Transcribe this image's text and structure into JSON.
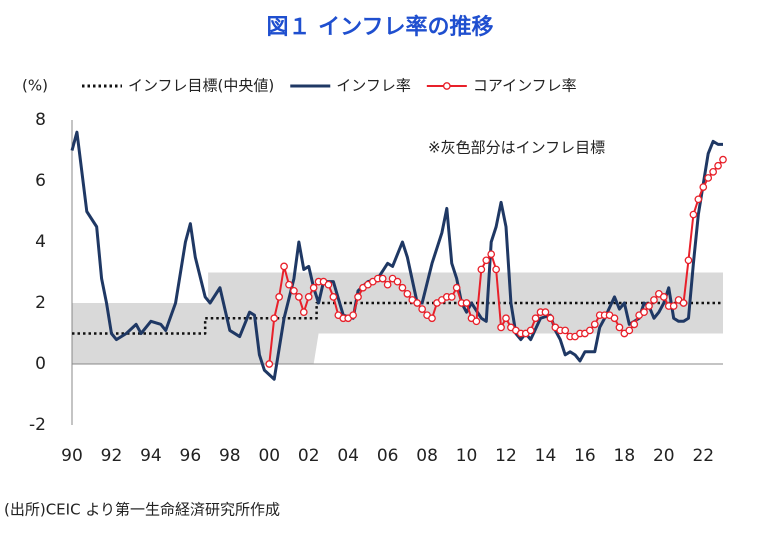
{
  "chart_data": {
    "type": "line",
    "title": "図１ インフレ率の推移",
    "unit_label": "(%)",
    "annotation": "※灰色部分はインフレ目標",
    "source": "(出所)CEIC より第一生命経済研究所作成",
    "xlim": [
      1990,
      2023
    ],
    "ylim": [
      -2,
      8
    ],
    "yticks": [
      -2,
      0,
      2,
      4,
      6,
      8
    ],
    "xticks": [
      {
        "value": 1990,
        "label": "90"
      },
      {
        "value": 1992,
        "label": "92"
      },
      {
        "value": 1994,
        "label": "94"
      },
      {
        "value": 1996,
        "label": "96"
      },
      {
        "value": 1998,
        "label": "98"
      },
      {
        "value": 2000,
        "label": "00"
      },
      {
        "value": 2002,
        "label": "02"
      },
      {
        "value": 2004,
        "label": "04"
      },
      {
        "value": 2006,
        "label": "06"
      },
      {
        "value": 2008,
        "label": "08"
      },
      {
        "value": 2010,
        "label": "10"
      },
      {
        "value": 2012,
        "label": "12"
      },
      {
        "value": 2014,
        "label": "14"
      },
      {
        "value": 2016,
        "label": "16"
      },
      {
        "value": 2018,
        "label": "18"
      },
      {
        "value": 2020,
        "label": "20"
      },
      {
        "value": 2022,
        "label": "22"
      }
    ],
    "target_band": {
      "color": "#d9d9d9",
      "x": [
        1990,
        1996.9,
        1996.9,
        2002.25,
        2002.5,
        2023
      ],
      "lower": [
        0,
        0,
        0,
        0,
        1,
        1
      ],
      "upper": [
        2,
        2,
        3,
        3,
        3,
        3
      ]
    },
    "series": [
      {
        "name": "インフレ目標(中央値)",
        "style": "dotted",
        "color": "#111111",
        "x": [
          1990,
          1996.75,
          1996.75,
          2002.4,
          2002.4,
          2023
        ],
        "values": [
          1,
          1,
          1.5,
          1.5,
          2,
          2
        ]
      },
      {
        "name": "インフレ率",
        "style": "line",
        "color": "#1f3864",
        "x": [
          1990,
          1990.25,
          1990.75,
          1991.25,
          1991.5,
          1991.75,
          1992,
          1992.25,
          1992.75,
          1993.25,
          1993.5,
          1994,
          1994.5,
          1994.75,
          1995.25,
          1995.75,
          1996,
          1996.25,
          1996.75,
          1997,
          1997.5,
          1998,
          1998.5,
          1999,
          1999.25,
          1999.5,
          1999.75,
          2000.25,
          2000.5,
          2000.75,
          2001.25,
          2001.5,
          2001.75,
          2002,
          2002.25,
          2002.5,
          2002.75,
          2003.25,
          2003.75,
          2004.25,
          2004.5,
          2005,
          2005.5,
          2006,
          2006.25,
          2006.75,
          2007,
          2007.5,
          2007.75,
          2008.25,
          2008.75,
          2009,
          2009.25,
          2009.5,
          2009.75,
          2010,
          2010.25,
          2010.75,
          2011,
          2011.25,
          2011.5,
          2011.75,
          2012,
          2012.25,
          2012.5,
          2012.75,
          2013,
          2013.25,
          2013.75,
          2014.25,
          2014.5,
          2014.75,
          2015,
          2015.25,
          2015.5,
          2015.75,
          2016,
          2016.5,
          2016.75,
          2017,
          2017.5,
          2017.75,
          2018,
          2018.25,
          2018.75,
          2019,
          2019.25,
          2019.5,
          2019.75,
          2020,
          2020.25,
          2020.5,
          2020.75,
          2021,
          2021.25,
          2021.5,
          2021.75,
          2022,
          2022.25,
          2022.5,
          2022.75,
          2023
        ],
        "values": [
          7.0,
          7.6,
          5.0,
          4.5,
          2.8,
          2.0,
          1.0,
          0.8,
          1.0,
          1.3,
          1.0,
          1.4,
          1.3,
          1.1,
          2.0,
          4.0,
          4.6,
          3.5,
          2.2,
          2.0,
          2.5,
          1.1,
          0.9,
          1.7,
          1.6,
          0.3,
          -0.2,
          -0.5,
          0.5,
          1.5,
          2.8,
          4.0,
          3.1,
          3.2,
          2.5,
          2.0,
          2.7,
          2.7,
          1.6,
          1.5,
          2.4,
          2.7,
          2.8,
          3.3,
          3.2,
          4.0,
          3.5,
          2.0,
          2.0,
          3.3,
          4.3,
          5.1,
          3.3,
          2.8,
          2.0,
          1.7,
          2.0,
          1.5,
          1.4,
          4.0,
          4.5,
          5.3,
          4.5,
          2.0,
          1.0,
          0.8,
          1.0,
          0.8,
          1.5,
          1.6,
          1.1,
          0.8,
          0.3,
          0.4,
          0.3,
          0.1,
          0.4,
          0.4,
          1.2,
          1.5,
          2.2,
          1.8,
          2.0,
          1.3,
          1.5,
          2.0,
          1.9,
          1.5,
          1.7,
          2.0,
          2.5,
          1.5,
          1.4,
          1.4,
          1.5,
          3.3,
          4.9,
          5.9,
          6.9,
          7.3,
          7.2,
          7.2
        ]
      },
      {
        "name": "コアインフレ率",
        "style": "marker",
        "color": "#e8202a",
        "x": [
          2000,
          2000.25,
          2000.5,
          2000.75,
          2001,
          2001.25,
          2001.5,
          2001.75,
          2002,
          2002.25,
          2002.5,
          2002.75,
          2003,
          2003.25,
          2003.5,
          2003.75,
          2004,
          2004.25,
          2004.5,
          2004.75,
          2005,
          2005.25,
          2005.5,
          2005.75,
          2006,
          2006.25,
          2006.5,
          2006.75,
          2007,
          2007.25,
          2007.5,
          2007.75,
          2008,
          2008.25,
          2008.5,
          2008.75,
          2009,
          2009.25,
          2009.5,
          2009.75,
          2010,
          2010.25,
          2010.5,
          2010.75,
          2011,
          2011.25,
          2011.5,
          2011.75,
          2012,
          2012.25,
          2012.5,
          2012.75,
          2013,
          2013.25,
          2013.5,
          2013.75,
          2014,
          2014.25,
          2014.5,
          2014.75,
          2015,
          2015.25,
          2015.5,
          2015.75,
          2016,
          2016.25,
          2016.5,
          2016.75,
          2017,
          2017.25,
          2017.5,
          2017.75,
          2018,
          2018.25,
          2018.5,
          2018.75,
          2019,
          2019.25,
          2019.5,
          2019.75,
          2020,
          2020.25,
          2020.5,
          2020.75,
          2021,
          2021.25,
          2021.5,
          2021.75,
          2022,
          2022.25,
          2022.5,
          2022.75,
          2023
        ],
        "values": [
          0,
          1.5,
          2.2,
          3.2,
          2.6,
          2.4,
          2.2,
          1.7,
          2.2,
          2.5,
          2.7,
          2.7,
          2.6,
          2.2,
          1.6,
          1.5,
          1.5,
          1.6,
          2.2,
          2.5,
          2.6,
          2.7,
          2.8,
          2.8,
          2.6,
          2.8,
          2.7,
          2.5,
          2.3,
          2.1,
          2.0,
          1.8,
          1.6,
          1.5,
          2.0,
          2.1,
          2.2,
          2.2,
          2.5,
          2.0,
          2.0,
          1.5,
          1.4,
          3.1,
          3.4,
          3.6,
          3.1,
          1.2,
          1.5,
          1.2,
          1.1,
          1.0,
          1.0,
          1.1,
          1.5,
          1.7,
          1.7,
          1.5,
          1.2,
          1.1,
          1.1,
          0.9,
          0.9,
          1.0,
          1.0,
          1.1,
          1.3,
          1.6,
          1.6,
          1.6,
          1.5,
          1.2,
          1.0,
          1.1,
          1.3,
          1.6,
          1.7,
          1.9,
          2.1,
          2.3,
          2.2,
          1.9,
          1.9,
          2.1,
          2.0,
          3.4,
          4.9,
          5.4,
          5.8,
          6.1,
          6.3,
          6.5,
          6.7
        ]
      }
    ]
  }
}
